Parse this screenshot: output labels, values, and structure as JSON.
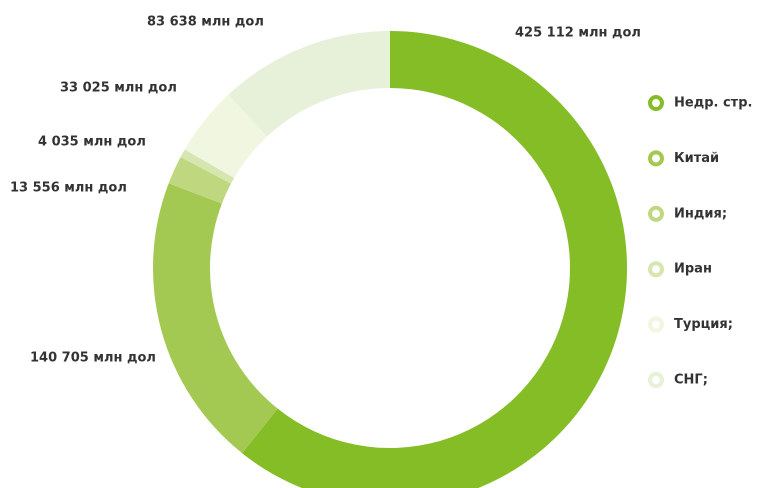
{
  "chart_data": {
    "type": "donut",
    "categories": [
      "Недр. стр.",
      "Китай",
      "Индия;",
      "Иран",
      "Турция;",
      "СНГ;"
    ],
    "values": [
      425112,
      140705,
      13556,
      4035,
      33025,
      83638
    ],
    "value_labels": [
      "425 112 млн дол",
      "140 705 млн дол",
      "13 556 млн дол",
      "4 035 млн дол",
      "33 025 млн дол",
      "83 638 млн дол"
    ],
    "colors": [
      "#84bd26",
      "#a4c952",
      "#bfd880",
      "#d6e6b0",
      "#f0f6e0",
      "#e7f0d8"
    ],
    "legend": "right"
  }
}
